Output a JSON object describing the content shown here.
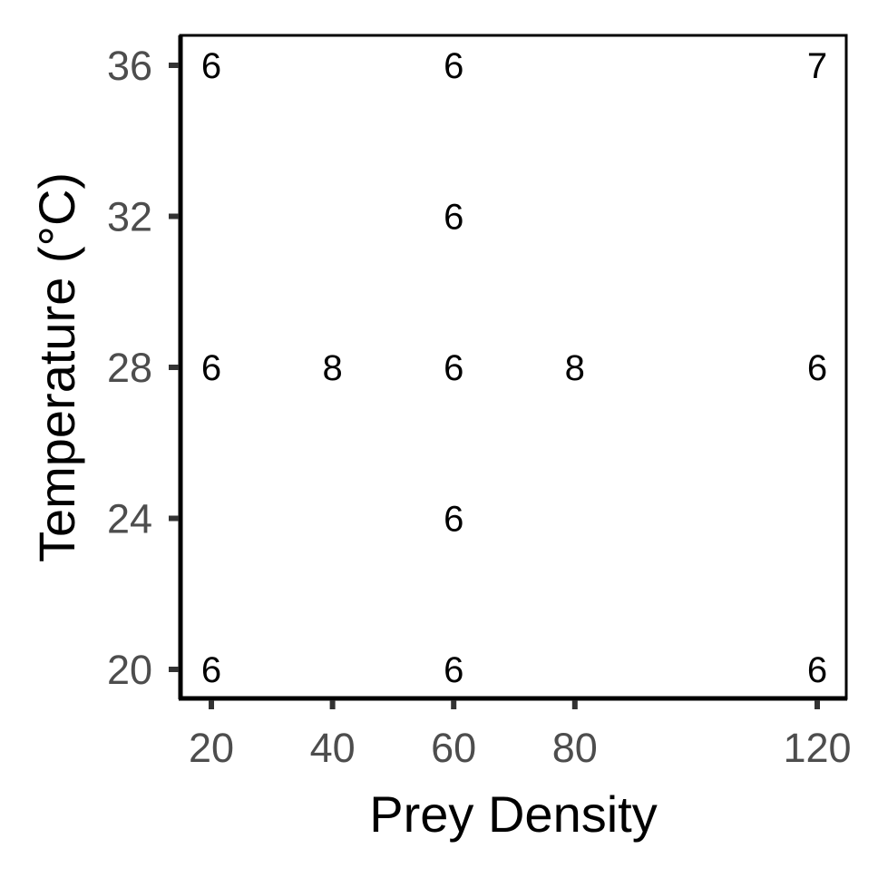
{
  "chart_data": {
    "type": "scatter",
    "xlabel": "Prey Density",
    "ylabel": "Temperature (°C)",
    "xlim": [
      20,
      120
    ],
    "ylim": [
      20,
      36
    ],
    "x_ticks": [
      20,
      40,
      60,
      80,
      120
    ],
    "y_ticks": [
      20,
      24,
      28,
      32,
      36
    ],
    "grid": false,
    "points": [
      {
        "x": 20,
        "y": 36,
        "label": "6"
      },
      {
        "x": 60,
        "y": 36,
        "label": "6"
      },
      {
        "x": 120,
        "y": 36,
        "label": "7"
      },
      {
        "x": 60,
        "y": 32,
        "label": "6"
      },
      {
        "x": 20,
        "y": 28,
        "label": "6"
      },
      {
        "x": 40,
        "y": 28,
        "label": "8"
      },
      {
        "x": 60,
        "y": 28,
        "label": "6"
      },
      {
        "x": 80,
        "y": 28,
        "label": "8"
      },
      {
        "x": 120,
        "y": 28,
        "label": "6"
      },
      {
        "x": 60,
        "y": 24,
        "label": "6"
      },
      {
        "x": 20,
        "y": 20,
        "label": "6"
      },
      {
        "x": 60,
        "y": 20,
        "label": "6"
      },
      {
        "x": 120,
        "y": 20,
        "label": "6"
      }
    ]
  }
}
